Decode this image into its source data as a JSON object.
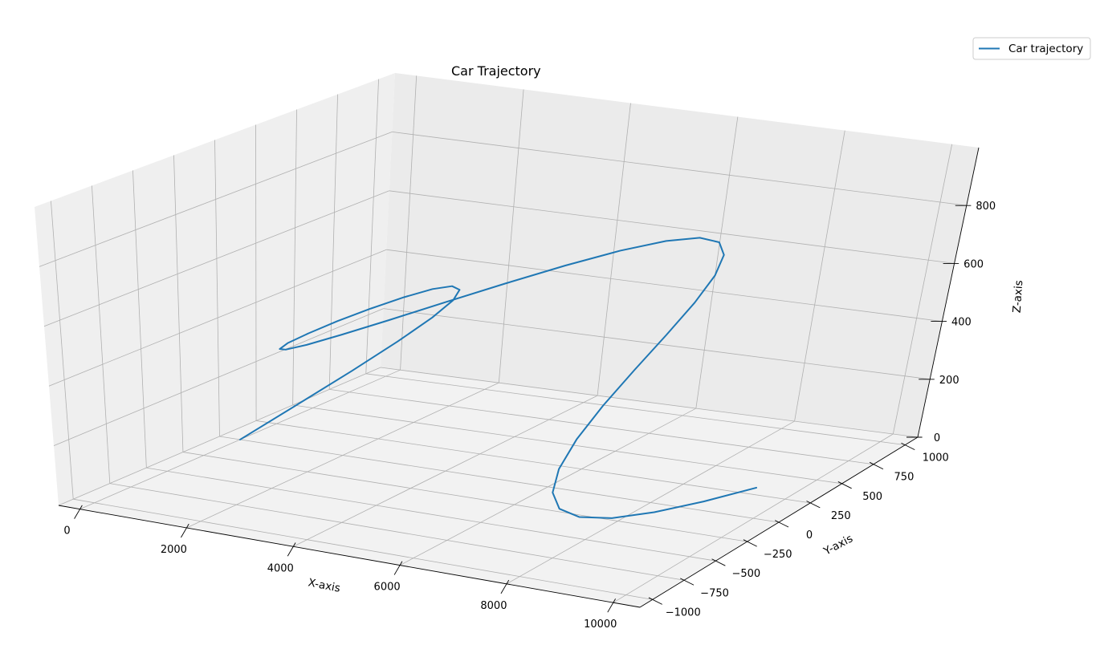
{
  "chart_data": {
    "type": "line",
    "projection": "3d",
    "title": "Car Trajectory",
    "xlabel": "X-axis",
    "ylabel": "Y-axis",
    "zlabel": "Z-axis",
    "xlim": [
      -400,
      10500
    ],
    "ylim": [
      -1100,
      1100
    ],
    "zlim": [
      0,
      1000
    ],
    "xticks": [
      0,
      2000,
      4000,
      6000,
      8000,
      10000
    ],
    "yticks": [
      -1000,
      -750,
      -500,
      -250,
      0,
      250,
      500,
      750,
      1000
    ],
    "zticks": [
      0,
      200,
      400,
      600,
      800
    ],
    "xtick_labels": [
      "0",
      "2000",
      "4000",
      "6000",
      "8000",
      "10000"
    ],
    "ytick_labels": [
      "−1000",
      "−750",
      "−500",
      "−250",
      "0",
      "250",
      "500",
      "750",
      "1000"
    ],
    "ztick_labels": [
      "0",
      "200",
      "400",
      "600",
      "800"
    ],
    "grid": true,
    "legend": {
      "position": "top-right",
      "entries": [
        "Car trajectory"
      ]
    },
    "colors": {
      "series": "#1f77b4",
      "grid": "#b0b0b0",
      "pane_floor": "#f2f2f2",
      "pane_side": "#efefef",
      "pane_back": "#ebebeb"
    },
    "series": [
      {
        "name": "Car trajectory",
        "x": [
          0,
          250,
          500,
          750,
          1000,
          1250,
          1500,
          1750,
          2000,
          2250,
          2500,
          2750,
          3000,
          3250,
          3500,
          3750,
          4000,
          4250,
          4500,
          4750,
          5000,
          5250,
          5500,
          5750,
          6000,
          6250,
          6500,
          6750,
          7000,
          7250,
          7500,
          7750,
          8000,
          8250,
          8500,
          8750,
          9000,
          9250,
          9500,
          9750,
          10000
        ],
        "y": [
          0,
          309,
          588,
          809,
          951,
          1000,
          951,
          809,
          588,
          309,
          0,
          -309,
          -588,
          -809,
          -951,
          -1000,
          -951,
          -809,
          -588,
          -309,
          0,
          309,
          588,
          809,
          951,
          1000,
          951,
          809,
          588,
          309,
          0,
          -309,
          -588,
          -809,
          -951,
          -1000,
          -951,
          -809,
          -588,
          -309,
          0
        ],
        "z": [
          0,
          60,
          119,
          177,
          233,
          287,
          339,
          389,
          435,
          477,
          516,
          552,
          583,
          611,
          633,
          652,
          666,
          676,
          681,
          682,
          678,
          670,
          658,
          642,
          623,
          601,
          576,
          548,
          518,
          486,
          452,
          417,
          381,
          344,
          307,
          271,
          236,
          201,
          169,
          138,
          109
        ]
      }
    ]
  }
}
